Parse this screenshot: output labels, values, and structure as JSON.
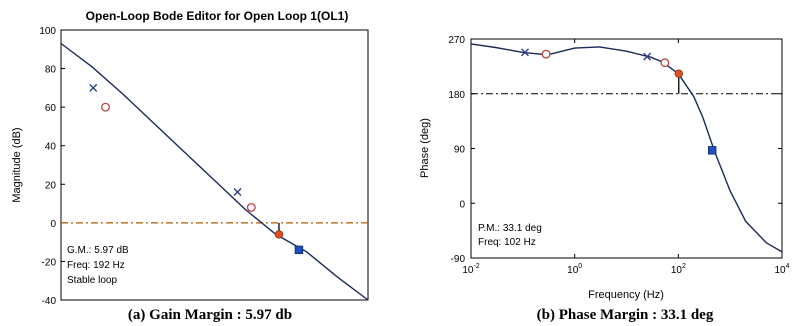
{
  "chart_data": [
    {
      "type": "line",
      "title": "Open-Loop Bode Editor for Open Loop 1(OL1)",
      "ylabel": "Magnitude (dB)",
      "xlabel": "",
      "yticks": [
        100,
        80,
        60,
        40,
        20,
        0,
        -20,
        -40
      ],
      "ylim": [
        -40,
        100
      ],
      "grid": false,
      "series": [
        {
          "x": [
            0.0,
            0.1,
            0.2,
            0.3,
            0.4,
            0.5,
            0.6,
            0.7,
            0.8,
            0.9,
            1.0
          ],
          "y": [
            93,
            81,
            67,
            52,
            37,
            22,
            7,
            -6,
            -15,
            -28,
            -40
          ]
        }
      ],
      "reference_line": {
        "y": 0,
        "style": "dash-dot",
        "color": "#b35a00"
      },
      "markers": [
        {
          "x": 0.105,
          "y": 70,
          "kind": "x"
        },
        {
          "x": 0.145,
          "y": 60,
          "kind": "o"
        },
        {
          "x": 0.575,
          "y": 16,
          "kind": "x"
        },
        {
          "x": 0.62,
          "y": 8,
          "kind": "o"
        },
        {
          "x": 0.71,
          "y": -6,
          "kind": "filled-red"
        },
        {
          "x": 0.775,
          "y": -14,
          "kind": "filled-blue"
        }
      ],
      "margin_stem": {
        "x": 0.71,
        "from": 0,
        "to": -6
      },
      "annotations": [
        "G.M.: 5.97 dB",
        "Freq: 192 Hz",
        "Stable loop"
      ]
    },
    {
      "type": "line",
      "ylabel": "Phase (deg)",
      "xlabel": "Frequency (Hz)",
      "xscale": "log",
      "xlim": [
        0.01,
        10000
      ],
      "xticks": [
        "10^-2",
        "10^0",
        "10^2",
        "10^4"
      ],
      "ylim": [
        -90,
        270
      ],
      "yticks": [
        270,
        180,
        90,
        0,
        -90
      ],
      "grid": false,
      "series": [
        {
          "x": [
            0.01,
            0.03,
            0.1,
            0.3,
            1,
            3,
            10,
            30,
            50,
            100,
            200,
            300,
            500,
            1000,
            2000,
            5000,
            10000
          ],
          "y": [
            262,
            256,
            248,
            244,
            255,
            257,
            250,
            240,
            232,
            213,
            175,
            140,
            85,
            20,
            -30,
            -65,
            -80
          ]
        }
      ],
      "reference_line": {
        "y": 180,
        "style": "dash-dot",
        "color": "#000000"
      },
      "markers": [
        {
          "x": 0.11,
          "y": 248,
          "kind": "x"
        },
        {
          "x": 0.28,
          "y": 245,
          "kind": "o"
        },
        {
          "x": 25,
          "y": 241,
          "kind": "x"
        },
        {
          "x": 55,
          "y": 231,
          "kind": "o"
        },
        {
          "x": 102,
          "y": 213,
          "kind": "filled-red"
        },
        {
          "x": 450,
          "y": 87,
          "kind": "filled-blue"
        }
      ],
      "margin_stem": {
        "x": 102,
        "from": 180,
        "to": 213
      },
      "annotations": [
        "P.M.: 33.1 deg",
        "Freq: 102 Hz"
      ]
    }
  ],
  "captions": [
    "(a) Gain Margin : 5.97 db",
    "(b) Phase Margin : 33.1 deg"
  ],
  "colors": {
    "curve": "#1a2a5a",
    "marker_red": "#e05020",
    "marker_blue": "#1f4fc0",
    "open_marker": "#c04040"
  }
}
